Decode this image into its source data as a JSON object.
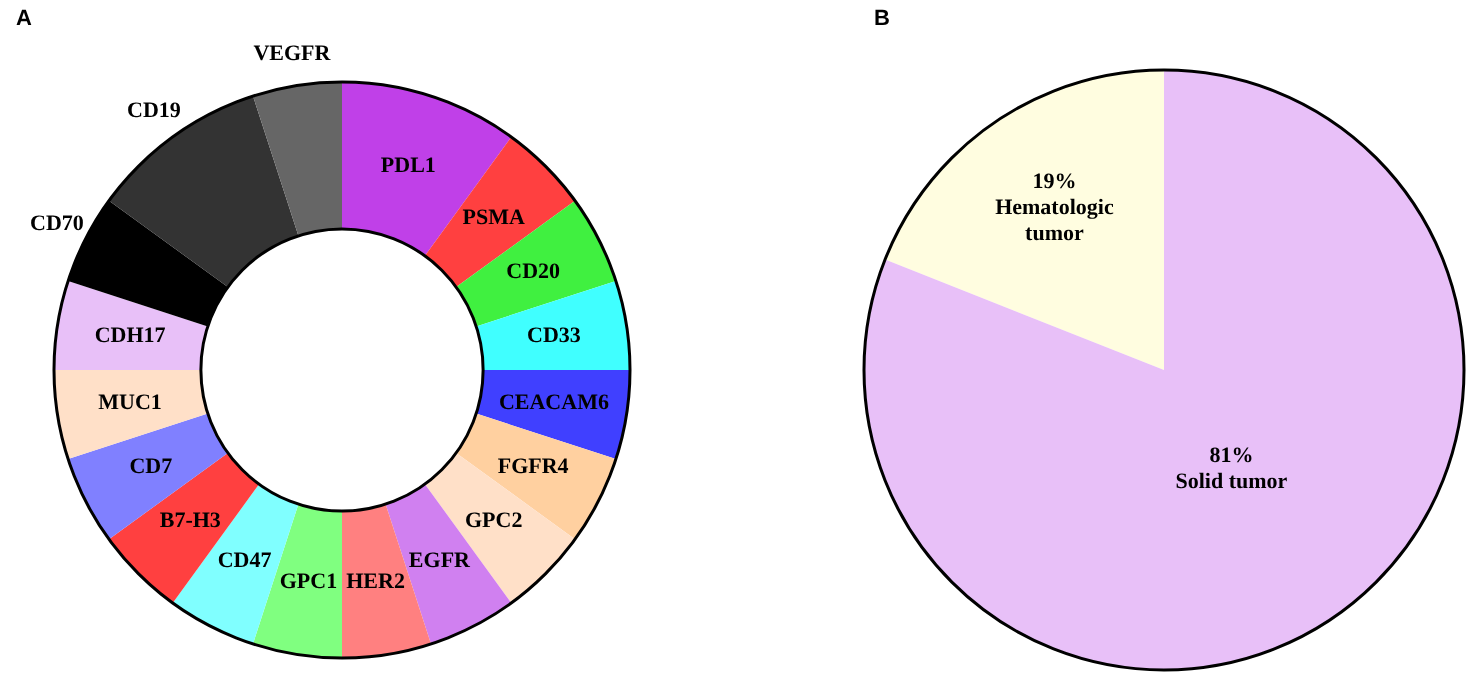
{
  "chart_data": [
    {
      "type": "donut",
      "title": "A",
      "categories": [
        "PDL1",
        "PSMA",
        "CD20",
        "CD33",
        "CEACAM6",
        "FGFR4",
        "GPC2",
        "EGFR",
        "HER2",
        "GPC1",
        "CD47",
        "B7-H3",
        "CD7",
        "MUC1",
        "CDH17",
        "CD70",
        "CD19",
        "VEGFR"
      ],
      "values": [
        10,
        5,
        5,
        5,
        5,
        5,
        5,
        5,
        5,
        5,
        5,
        5,
        5,
        5,
        5,
        5,
        10,
        5
      ],
      "colors": [
        "#c040e8",
        "#ff4040",
        "#40f040",
        "#40ffff",
        "#4040ff",
        "#ffd0a0",
        "#ffe0c8",
        "#d080f0",
        "#ff8080",
        "#80ff80",
        "#80ffff",
        "#ff4040",
        "#8080ff",
        "#ffe0c8",
        "#e8c0f8",
        "#000000",
        "#333333",
        "#666666"
      ],
      "legend": false
    },
    {
      "type": "pie",
      "title": "B",
      "categories": [
        "Hematologic tumor",
        "Solid tumor"
      ],
      "values": [
        19,
        81
      ],
      "colors": [
        "#fffde0",
        "#e8c0f8"
      ],
      "value_labels": [
        "19%",
        "81%"
      ],
      "legend": false
    }
  ]
}
